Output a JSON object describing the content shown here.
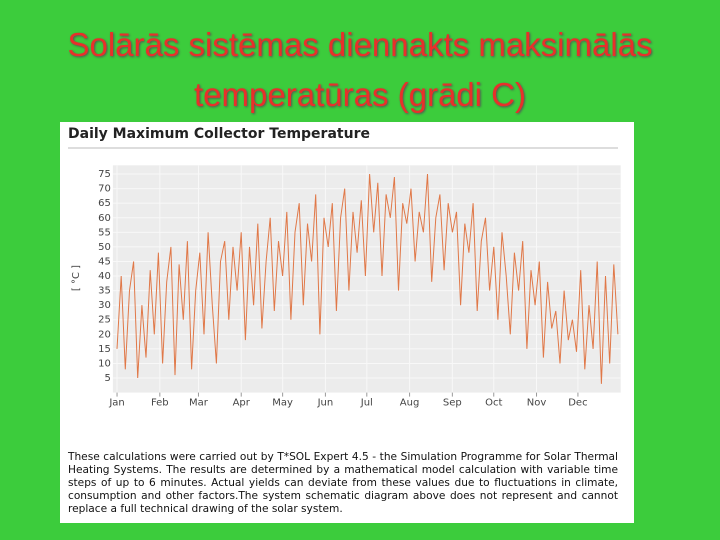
{
  "title": "Solārās sistēmas diennakts maksimālās temperatūras (grādi C)",
  "chart_data": {
    "type": "line",
    "title": "Daily Maximum Collector Temperature",
    "ylabel": "[ °C ]",
    "x": [
      1,
      4,
      7,
      10,
      13,
      16,
      19,
      22,
      25,
      28,
      31,
      34,
      37,
      40,
      43,
      46,
      49,
      52,
      55,
      58,
      61,
      64,
      67,
      70,
      73,
      76,
      79,
      82,
      85,
      88,
      91,
      94,
      97,
      100,
      103,
      106,
      109,
      112,
      115,
      118,
      121,
      124,
      127,
      130,
      133,
      136,
      139,
      142,
      145,
      148,
      151,
      154,
      157,
      160,
      163,
      166,
      169,
      172,
      175,
      178,
      181,
      184,
      187,
      190,
      193,
      196,
      199,
      202,
      205,
      208,
      211,
      214,
      217,
      220,
      223,
      226,
      229,
      232,
      235,
      238,
      241,
      244,
      247,
      250,
      253,
      256,
      259,
      262,
      265,
      268,
      271,
      274,
      277,
      280,
      283,
      286,
      289,
      292,
      295,
      298,
      301,
      304,
      307,
      310,
      313,
      316,
      319,
      322,
      325,
      328,
      331,
      334,
      337,
      340,
      343,
      346,
      349,
      352,
      355,
      358,
      361,
      364
    ],
    "series": [
      {
        "color": "#e07848",
        "values": [
          15,
          40,
          8,
          35,
          45,
          5,
          30,
          12,
          42,
          20,
          48,
          10,
          38,
          50,
          6,
          44,
          25,
          52,
          8,
          35,
          48,
          20,
          55,
          30,
          10,
          45,
          52,
          25,
          50,
          35,
          55,
          18,
          50,
          30,
          58,
          22,
          45,
          60,
          28,
          52,
          40,
          62,
          25,
          55,
          65,
          30,
          58,
          45,
          68,
          20,
          60,
          50,
          65,
          28,
          60,
          70,
          35,
          62,
          48,
          66,
          40,
          75,
          55,
          72,
          40,
          68,
          60,
          74,
          35,
          65,
          58,
          70,
          45,
          62,
          55,
          75,
          38,
          60,
          68,
          42,
          65,
          55,
          62,
          30,
          58,
          48,
          65,
          28,
          52,
          60,
          35,
          50,
          25,
          55,
          40,
          20,
          48,
          35,
          52,
          15,
          42,
          30,
          45,
          12,
          38,
          22,
          28,
          10,
          35,
          18,
          25,
          14,
          42,
          8,
          30,
          15,
          45,
          3,
          40,
          10,
          44,
          20
        ]
      }
    ],
    "xlim": [
      -2,
      366
    ],
    "ylim": [
      0,
      78
    ],
    "xticks": [
      {
        "value": 1,
        "label": "Jan"
      },
      {
        "value": 32,
        "label": "Feb"
      },
      {
        "value": 60,
        "label": "Mar"
      },
      {
        "value": 91,
        "label": "Apr"
      },
      {
        "value": 121,
        "label": "May"
      },
      {
        "value": 152,
        "label": "Jun"
      },
      {
        "value": 182,
        "label": "Jul"
      },
      {
        "value": 213,
        "label": "Aug"
      },
      {
        "value": 244,
        "label": "Sep"
      },
      {
        "value": 274,
        "label": "Oct"
      },
      {
        "value": 305,
        "label": "Nov"
      },
      {
        "value": 335,
        "label": "Dec"
      }
    ],
    "yticks": [
      5,
      10,
      15,
      20,
      25,
      30,
      35,
      40,
      45,
      50,
      55,
      60,
      65,
      70,
      75
    ],
    "grid": true
  },
  "note": "These calculations were carried out by T*SOL Expert 4.5 - the Simulation Programme for Solar Thermal Heating Systems. The results are determined by a mathematical model calculation with variable time steps of up to 6 minutes. Actual yields can deviate from these values due to fluctuations in climate, consumption and other factors.The system schematic diagram above does not represent and cannot replace a full technical drawing of the solar system."
}
